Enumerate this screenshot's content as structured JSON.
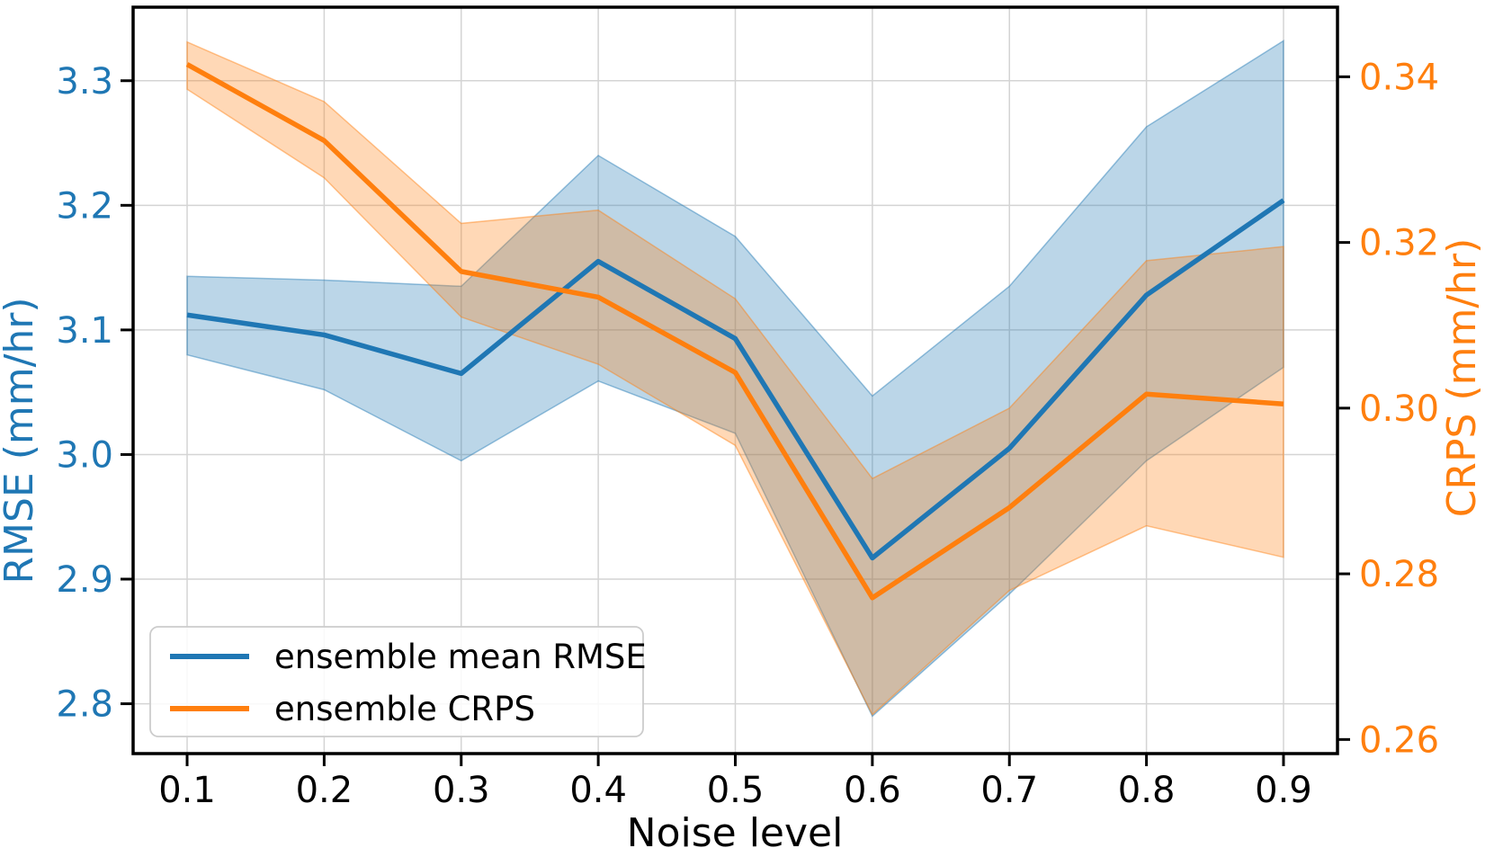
{
  "chart_data": {
    "type": "line",
    "xlabel": "Noise level",
    "ylabel_left": "RMSE (mm/hr)",
    "ylabel_right": "CRPS (mm/hr)",
    "x": [
      0.1,
      0.2,
      0.3,
      0.4,
      0.5,
      0.6,
      0.7,
      0.8,
      0.9
    ],
    "x_tick_labels": [
      "0.1",
      "0.2",
      "0.3",
      "0.4",
      "0.5",
      "0.6",
      "0.7",
      "0.8",
      "0.9"
    ],
    "xlim": [
      0.0606,
      0.9394
    ],
    "left_ticks": [
      2.8,
      2.9,
      3.0,
      3.1,
      3.2,
      3.3
    ],
    "left_tick_labels": [
      "2.8",
      "2.9",
      "3.0",
      "3.1",
      "3.2",
      "3.3"
    ],
    "ylim_left": [
      2.76,
      3.359
    ],
    "right_ticks": [
      0.26,
      0.28,
      0.3,
      0.32,
      0.34
    ],
    "right_tick_labels": [
      "0.26",
      "0.28",
      "0.30",
      "0.32",
      "0.34"
    ],
    "ylim_right": [
      0.2583,
      0.3484
    ],
    "grid": true,
    "legend_position": "lower-left",
    "series": [
      {
        "name": "ensemble mean RMSE",
        "axis": "left",
        "color": "#1f77b4",
        "values": [
          3.112,
          3.096,
          3.065,
          3.155,
          3.093,
          2.917,
          3.005,
          3.128,
          3.204
        ],
        "band_low": [
          3.08,
          3.052,
          2.995,
          3.059,
          3.017,
          2.79,
          2.888,
          2.995,
          3.07
        ],
        "band_high": [
          3.143,
          3.14,
          3.135,
          3.24,
          3.175,
          3.047,
          3.135,
          3.263,
          3.332
        ]
      },
      {
        "name": "ensemble CRPS",
        "axis": "right",
        "color": "#ff7f0e",
        "values": [
          0.3415,
          0.3323,
          0.3165,
          0.3134,
          0.3043,
          0.2771,
          0.288,
          0.3017,
          0.3005
        ],
        "band_low": [
          0.3385,
          0.3278,
          0.311,
          0.3053,
          0.2955,
          0.263,
          0.278,
          0.2858,
          0.282
        ],
        "band_high": [
          0.3442,
          0.337,
          0.3223,
          0.3239,
          0.3132,
          0.2915,
          0.3,
          0.3178,
          0.3195
        ]
      }
    ]
  },
  "colors": {
    "left_axis": "#1f77b4",
    "right_axis": "#ff7f0e",
    "spine": "#000000",
    "grid": "#d4d4d4",
    "tick_text_x": "#000000",
    "legend_border": "#cccccc",
    "legend_bg": "#ffffff"
  }
}
